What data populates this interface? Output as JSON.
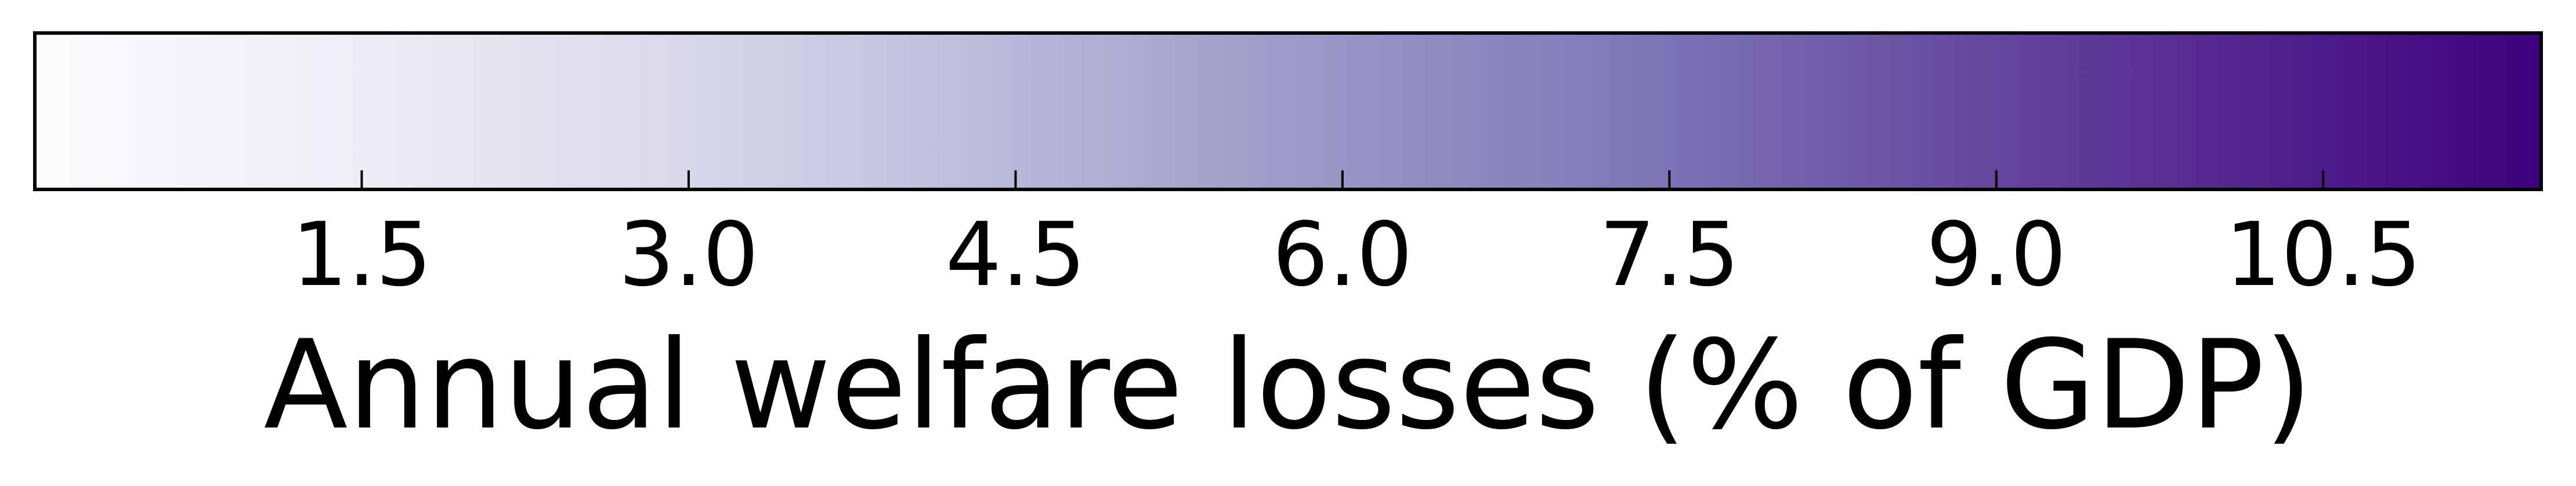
{
  "chart_data": {
    "type": "colorbar",
    "orientation": "horizontal",
    "colormap": "Purples",
    "range": [
      0,
      11.5
    ],
    "ticks": [
      1.5,
      3.0,
      4.5,
      6.0,
      7.5,
      9.0,
      10.5
    ],
    "tick_labels": [
      "1.5",
      "3.0",
      "4.5",
      "6.0",
      "7.5",
      "9.0",
      "10.5"
    ],
    "xlabel": "Annual welfare losses (% of GDP)",
    "color_stops": [
      {
        "value": 0.0,
        "color": "#fcfbfd"
      },
      {
        "value": 1.4375,
        "color": "#efedf5"
      },
      {
        "value": 2.875,
        "color": "#dadaeb"
      },
      {
        "value": 4.3125,
        "color": "#bcbddc"
      },
      {
        "value": 5.75,
        "color": "#9e9ac8"
      },
      {
        "value": 7.1875,
        "color": "#807dba"
      },
      {
        "value": 8.625,
        "color": "#6a51a3"
      },
      {
        "value": 10.0625,
        "color": "#54278f"
      },
      {
        "value": 11.5,
        "color": "#3f007d"
      }
    ]
  }
}
